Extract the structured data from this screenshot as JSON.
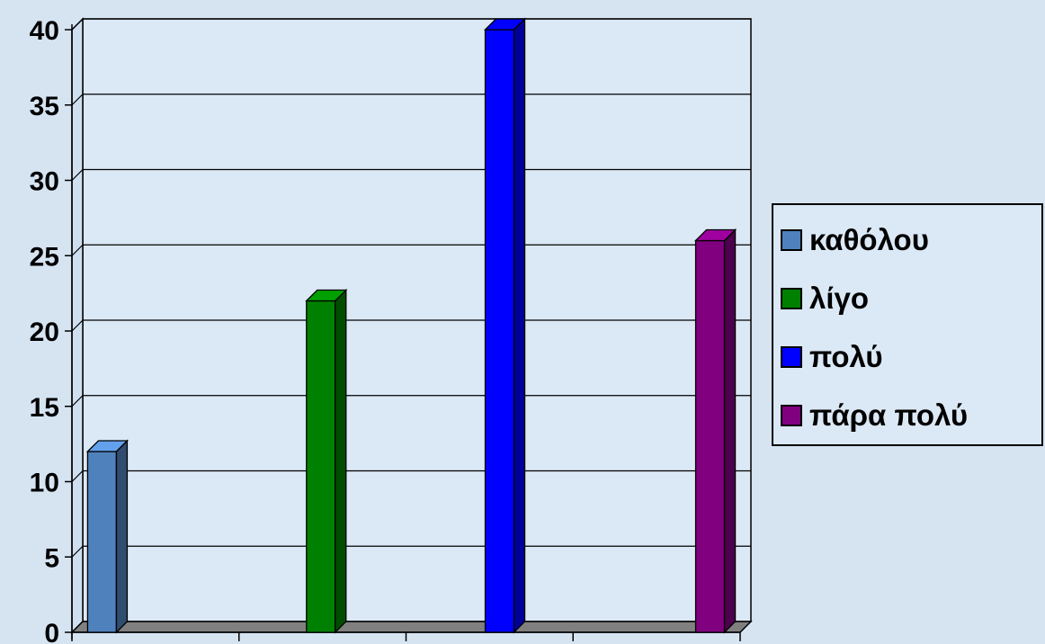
{
  "chart_data": {
    "type": "bar",
    "title": "",
    "xlabel": "",
    "ylabel": "",
    "ylim": [
      0,
      40
    ],
    "yticks": [
      0,
      5,
      10,
      15,
      20,
      25,
      30,
      35,
      40
    ],
    "grid": true,
    "legend_position": "right",
    "series": [
      {
        "name": "καθόλου",
        "values": [
          12
        ],
        "color": "#4f81bd"
      },
      {
        "name": "λίγο",
        "values": [
          22
        ],
        "color": "#008000"
      },
      {
        "name": "πολύ",
        "values": [
          40
        ],
        "color": "#0000ff"
      },
      {
        "name": "πάρα πολύ",
        "values": [
          26
        ],
        "color": "#800080"
      }
    ]
  }
}
